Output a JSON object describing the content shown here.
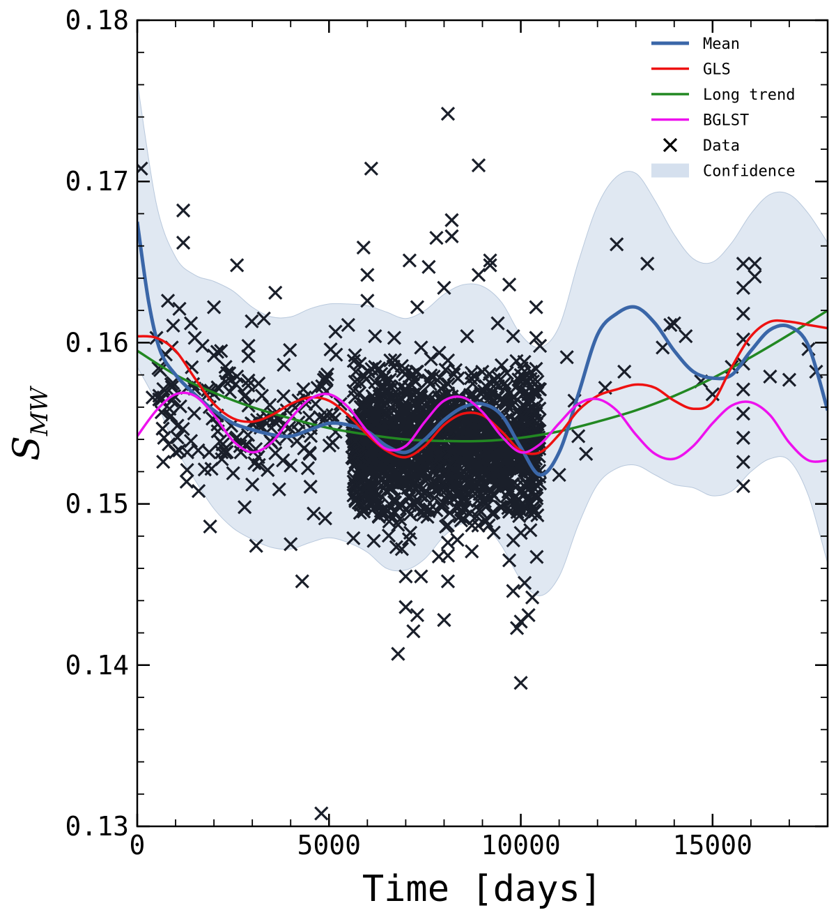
{
  "chart_data": {
    "type": "line",
    "xlabel": "Time [days]",
    "ylabel_main": "S",
    "ylabel_sub": "MW",
    "xlim": [
      0,
      18000
    ],
    "ylim": [
      0.13,
      0.18
    ],
    "xticks": [
      0,
      5000,
      10000,
      15000
    ],
    "xtick_labels": [
      "0",
      "5000",
      "10000",
      "15000"
    ],
    "yticks": [
      0.13,
      0.14,
      0.15,
      0.16,
      0.17,
      0.18
    ],
    "ytick_labels": [
      "0.13",
      "0.14",
      "0.15",
      "0.16",
      "0.17",
      "0.18"
    ],
    "grid": false,
    "legend_position": "top-right",
    "series": [
      {
        "name": "Mean",
        "color": "#3a66a8",
        "x": [
          0,
          300,
          600,
          1000,
          1500,
          2000,
          2500,
          3000,
          3500,
          4000,
          4500,
          5000,
          5500,
          6000,
          6500,
          7000,
          7500,
          8000,
          8500,
          9000,
          9500,
          10000,
          10500,
          11000,
          11500,
          12000,
          12500,
          13000,
          13500,
          14000,
          14500,
          15000,
          15500,
          16000,
          16500,
          17000,
          17500,
          18000
        ],
        "y": [
          0.1675,
          0.1625,
          0.1595,
          0.158,
          0.1568,
          0.1558,
          0.155,
          0.1546,
          0.1543,
          0.1542,
          0.1546,
          0.155,
          0.1549,
          0.1545,
          0.1536,
          0.1532,
          0.154,
          0.1552,
          0.156,
          0.1562,
          0.1555,
          0.1535,
          0.1518,
          0.1532,
          0.1568,
          0.1605,
          0.1618,
          0.1622,
          0.1612,
          0.1595,
          0.1582,
          0.1578,
          0.158,
          0.1595,
          0.1608,
          0.161,
          0.1598,
          0.1558
        ]
      },
      {
        "name": "GLS",
        "color": "#ee1111",
        "x": [
          0,
          500,
          1000,
          1500,
          2000,
          2500,
          3000,
          3500,
          4000,
          4500,
          5000,
          5500,
          6000,
          6500,
          7000,
          7500,
          8000,
          8500,
          9000,
          9500,
          10000,
          10500,
          11000,
          11500,
          12000,
          12500,
          13000,
          13500,
          14000,
          14500,
          15000,
          15500,
          16000,
          16500,
          17000,
          17500,
          18000
        ],
        "y": [
          0.1604,
          0.1603,
          0.1595,
          0.1578,
          0.1562,
          0.1553,
          0.1551,
          0.1555,
          0.1562,
          0.1566,
          0.1564,
          0.1555,
          0.1543,
          0.1533,
          0.1529,
          0.1536,
          0.1549,
          0.1556,
          0.1555,
          0.1545,
          0.1533,
          0.1532,
          0.1543,
          0.1558,
          0.1567,
          0.1571,
          0.1574,
          0.1572,
          0.1564,
          0.1559,
          0.1563,
          0.1585,
          0.1604,
          0.1613,
          0.1613,
          0.1611,
          0.1609
        ]
      },
      {
        "name": "Long trend",
        "color": "#228822",
        "x": [
          0,
          1000,
          2000,
          3000,
          4000,
          5000,
          6000,
          7000,
          8000,
          9000,
          10000,
          11000,
          12000,
          13000,
          14000,
          15000,
          16000,
          17000,
          18000
        ],
        "y": [
          0.1595,
          0.158,
          0.1569,
          0.156,
          0.1553,
          0.1547,
          0.1543,
          0.154,
          0.1539,
          0.1539,
          0.1541,
          0.1545,
          0.1551,
          0.1558,
          0.1567,
          0.1578,
          0.1591,
          0.1605,
          0.162
        ]
      },
      {
        "name": "BGLST",
        "color": "#ee11ee",
        "x": [
          0,
          500,
          1000,
          1500,
          2000,
          2500,
          3000,
          3500,
          4000,
          4500,
          5000,
          5500,
          6000,
          6500,
          7000,
          7500,
          8000,
          8500,
          9000,
          9500,
          10000,
          10500,
          11000,
          11500,
          12000,
          12500,
          13000,
          13500,
          14000,
          14500,
          15000,
          15500,
          16000,
          16500,
          17000,
          17500,
          18000
        ],
        "y": [
          0.1542,
          0.1558,
          0.1568,
          0.1567,
          0.1555,
          0.1539,
          0.1532,
          0.1538,
          0.1553,
          0.1565,
          0.1568,
          0.156,
          0.1545,
          0.1534,
          0.1536,
          0.1551,
          0.1564,
          0.1566,
          0.1557,
          0.1542,
          0.1532,
          0.1537,
          0.155,
          0.1562,
          0.1565,
          0.1558,
          0.1543,
          0.1531,
          0.1528,
          0.1536,
          0.155,
          0.1561,
          0.1563,
          0.1555,
          0.1538,
          0.1527,
          0.1527
        ]
      }
    ],
    "confidence": {
      "name": "Confidence",
      "color": "#d5e0ee",
      "x": [
        0,
        500,
        1000,
        1500,
        2000,
        2500,
        3000,
        3500,
        4000,
        4500,
        5000,
        5500,
        6000,
        6500,
        7000,
        7500,
        8000,
        8500,
        9000,
        9500,
        10000,
        10500,
        11000,
        11500,
        12000,
        12500,
        13000,
        13500,
        14000,
        14500,
        15000,
        15500,
        16000,
        16500,
        17000,
        17500,
        18000
      ],
      "upper": [
        0.1762,
        0.1686,
        0.1653,
        0.1642,
        0.1638,
        0.1632,
        0.1622,
        0.1616,
        0.1616,
        0.1621,
        0.1624,
        0.1624,
        0.1623,
        0.1619,
        0.1615,
        0.162,
        0.163,
        0.1636,
        0.1635,
        0.1625,
        0.1605,
        0.1597,
        0.161,
        0.165,
        0.1685,
        0.1703,
        0.1705,
        0.1688,
        0.1667,
        0.1652,
        0.165,
        0.1662,
        0.168,
        0.1692,
        0.1692,
        0.168,
        0.1662
      ],
      "lower": [
        0.1585,
        0.1563,
        0.1535,
        0.1515,
        0.1497,
        0.1485,
        0.1478,
        0.1473,
        0.1472,
        0.1476,
        0.1479,
        0.1476,
        0.147,
        0.146,
        0.1459,
        0.1466,
        0.148,
        0.1488,
        0.1488,
        0.1474,
        0.1453,
        0.1443,
        0.1455,
        0.1487,
        0.1512,
        0.1522,
        0.1524,
        0.1518,
        0.1512,
        0.151,
        0.1505,
        0.1508,
        0.152,
        0.1528,
        0.1527,
        0.1505,
        0.1463
      ]
    },
    "data_marker": {
      "name": "Data",
      "color": "#1a1f2a"
    },
    "data_points": [
      [
        100,
        0.1708
      ],
      [
        1200,
        0.1682
      ],
      [
        1200,
        0.1662
      ],
      [
        2600,
        0.1648
      ],
      [
        500,
        0.1603
      ],
      [
        800,
        0.1626
      ],
      [
        1100,
        0.1621
      ],
      [
        1400,
        0.1612
      ],
      [
        1700,
        0.1598
      ],
      [
        2000,
        0.1592
      ],
      [
        2300,
        0.1585
      ],
      [
        2600,
        0.1579
      ],
      [
        2900,
        0.1561
      ],
      [
        3200,
        0.1549
      ],
      [
        3500,
        0.1538
      ],
      [
        3800,
        0.1527
      ],
      [
        400,
        0.1566
      ],
      [
        700,
        0.1541
      ],
      [
        1000,
        0.1532
      ],
      [
        1300,
        0.1521
      ],
      [
        1600,
        0.1508
      ],
      [
        1900,
        0.1486
      ],
      [
        2200,
        0.1532
      ],
      [
        2500,
        0.1519
      ],
      [
        2800,
        0.1498
      ],
      [
        3100,
        0.1474
      ],
      [
        3400,
        0.1521
      ],
      [
        3700,
        0.1509
      ],
      [
        4000,
        0.1475
      ],
      [
        4300,
        0.1452
      ],
      [
        4600,
        0.1494
      ],
      [
        4900,
        0.1491
      ],
      [
        5100,
        0.1538
      ],
      [
        5300,
        0.1562
      ],
      [
        5500,
        0.1611
      ],
      [
        5700,
        0.1582
      ],
      [
        4400,
        0.1562
      ],
      [
        4700,
        0.1572
      ],
      [
        3600,
        0.1631
      ],
      [
        2900,
        0.1598
      ],
      [
        3300,
        0.1615
      ],
      [
        2400,
        0.1581
      ],
      [
        2000,
        0.1622
      ],
      [
        1500,
        0.1603
      ],
      [
        900,
        0.1597
      ],
      [
        600,
        0.1583
      ],
      [
        2100,
        0.1545
      ],
      [
        2700,
        0.1532
      ],
      [
        3000,
        0.1512
      ],
      [
        3900,
        0.1558
      ],
      [
        4200,
        0.1545
      ],
      [
        4500,
        0.1531
      ],
      [
        4800,
        0.1308
      ],
      [
        5900,
        0.1659
      ],
      [
        6000,
        0.1642
      ],
      [
        6100,
        0.1708
      ],
      [
        6000,
        0.1626
      ],
      [
        6200,
        0.1604
      ],
      [
        6300,
        0.1584
      ],
      [
        6400,
        0.1567
      ],
      [
        6500,
        0.1547
      ],
      [
        6600,
        0.1527
      ],
      [
        6700,
        0.1503
      ],
      [
        6800,
        0.1487
      ],
      [
        6900,
        0.1472
      ],
      [
        7000,
        0.1455
      ],
      [
        6800,
        0.1407
      ],
      [
        7000,
        0.1436
      ],
      [
        7200,
        0.1421
      ],
      [
        7300,
        0.1431
      ],
      [
        7400,
        0.1455
      ],
      [
        7100,
        0.1651
      ],
      [
        7300,
        0.1622
      ],
      [
        7600,
        0.1647
      ],
      [
        7800,
        0.1665
      ],
      [
        8000,
        0.1634
      ],
      [
        8100,
        0.1742
      ],
      [
        8200,
        0.1676
      ],
      [
        8200,
        0.1666
      ],
      [
        8100,
        0.1476
      ],
      [
        8100,
        0.1452
      ],
      [
        8100,
        0.1468
      ],
      [
        8000,
        0.1428
      ],
      [
        8300,
        0.1583
      ],
      [
        8400,
        0.1552
      ],
      [
        8600,
        0.1565
      ],
      [
        8800,
        0.1546
      ],
      [
        8900,
        0.171
      ],
      [
        8900,
        0.1642
      ],
      [
        9200,
        0.1651
      ],
      [
        9200,
        0.1648
      ],
      [
        9400,
        0.1612
      ],
      [
        9500,
        0.1586
      ],
      [
        9600,
        0.1563
      ],
      [
        9700,
        0.1636
      ],
      [
        9800,
        0.1604
      ],
      [
        9900,
        0.1551
      ],
      [
        9700,
        0.1465
      ],
      [
        9800,
        0.1446
      ],
      [
        9900,
        0.1423
      ],
      [
        10000,
        0.1389
      ],
      [
        10000,
        0.1427
      ],
      [
        10100,
        0.1451
      ],
      [
        10200,
        0.1431
      ],
      [
        10300,
        0.1442
      ],
      [
        10400,
        0.1603
      ],
      [
        10400,
        0.1622
      ],
      [
        10500,
        0.1598
      ],
      [
        10500,
        0.1538
      ],
      [
        10400,
        0.1512
      ],
      [
        10300,
        0.1497
      ],
      [
        10200,
        0.1532
      ],
      [
        10100,
        0.1521
      ],
      [
        10000,
        0.1482
      ],
      [
        5800,
        0.1587
      ],
      [
        5900,
        0.1562
      ],
      [
        6000,
        0.1541
      ],
      [
        6100,
        0.1524
      ],
      [
        6200,
        0.1508
      ],
      [
        6300,
        0.1492
      ],
      [
        6400,
        0.1535
      ],
      [
        6500,
        0.1571
      ],
      [
        6600,
        0.1589
      ],
      [
        6700,
        0.1603
      ],
      [
        6800,
        0.1552
      ],
      [
        6900,
        0.1536
      ],
      [
        7000,
        0.1521
      ],
      [
        7100,
        0.1505
      ],
      [
        7200,
        0.1568
      ],
      [
        7300,
        0.1582
      ],
      [
        7400,
        0.1597
      ],
      [
        7500,
        0.1543
      ],
      [
        7600,
        0.1528
      ],
      [
        7700,
        0.1512
      ],
      [
        7800,
        0.1496
      ],
      [
        7900,
        0.1558
      ],
      [
        8000,
        0.1573
      ],
      [
        8100,
        0.1589
      ],
      [
        8200,
        0.1537
      ],
      [
        8300,
        0.1521
      ],
      [
        8400,
        0.1506
      ],
      [
        8500,
        0.1491
      ],
      [
        8600,
        0.1604
      ],
      [
        8700,
        0.1578
      ],
      [
        8800,
        0.1532
      ],
      [
        8900,
        0.1517
      ],
      [
        9000,
        0.1502
      ],
      [
        9100,
        0.1561
      ],
      [
        9200,
        0.1575
      ],
      [
        9300,
        0.1529
      ],
      [
        9400,
        0.1513
      ],
      [
        9500,
        0.1498
      ],
      [
        9600,
        0.1542
      ],
      [
        9700,
        0.1527
      ],
      [
        9800,
        0.1512
      ],
      [
        9900,
        0.1497
      ],
      [
        10000,
        0.1571
      ],
      [
        10100,
        0.1556
      ],
      [
        10200,
        0.1541
      ],
      [
        10300,
        0.1526
      ],
      [
        10400,
        0.1556
      ],
      [
        10500,
        0.1571
      ],
      [
        11000,
        0.1518
      ],
      [
        11200,
        0.1591
      ],
      [
        11400,
        0.1564
      ],
      [
        11500,
        0.1542
      ],
      [
        11700,
        0.1531
      ],
      [
        12200,
        0.1572
      ],
      [
        12500,
        0.1661
      ],
      [
        12700,
        0.1582
      ],
      [
        13300,
        0.1649
      ],
      [
        13700,
        0.1597
      ],
      [
        13900,
        0.1611
      ],
      [
        14000,
        0.1612
      ],
      [
        14300,
        0.1604
      ],
      [
        14700,
        0.1576
      ],
      [
        15000,
        0.1568
      ],
      [
        15500,
        0.1585
      ],
      [
        15800,
        0.1649
      ],
      [
        15800,
        0.1634
      ],
      [
        15800,
        0.1618
      ],
      [
        15800,
        0.1602
      ],
      [
        15800,
        0.1587
      ],
      [
        15800,
        0.1571
      ],
      [
        15800,
        0.1556
      ],
      [
        15800,
        0.1541
      ],
      [
        15800,
        0.1526
      ],
      [
        15800,
        0.1511
      ],
      [
        16100,
        0.1649
      ],
      [
        16100,
        0.1641
      ],
      [
        16500,
        0.1579
      ],
      [
        17000,
        0.1577
      ],
      [
        17700,
        0.1582
      ],
      [
        17500,
        0.1596
      ]
    ]
  }
}
